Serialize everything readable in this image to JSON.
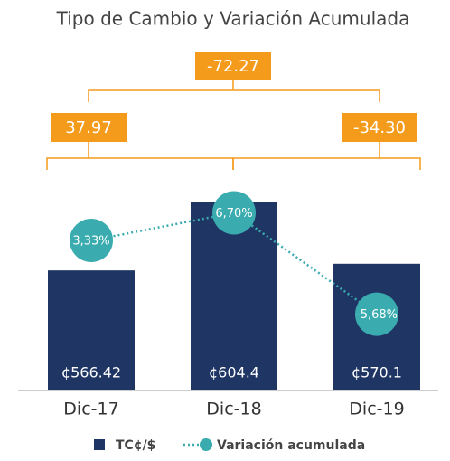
{
  "chart_data": {
    "type": "bar",
    "title": "Tipo de Cambio y Variación Acumulada",
    "categories": [
      "Dic-17",
      "Dic-18",
      "Dic-19"
    ],
    "series": [
      {
        "name": "TC¢/$",
        "type": "bar",
        "color": "#1f3564",
        "values": [
          566.42,
          604.4,
          570.1
        ],
        "value_labels": [
          "¢566.42",
          "¢604.4",
          "¢570.1"
        ]
      },
      {
        "name": "Variación acumulada",
        "type": "line",
        "axis": "y2",
        "color": "#3aacaf",
        "values": [
          3.33,
          6.7,
          -5.68
        ],
        "value_labels": [
          "3,33%",
          "6,70%",
          "-5,68%"
        ]
      }
    ],
    "ylim": [
      500,
      620
    ],
    "y2lim": [
      -15,
      11.5
    ],
    "annotations": [
      "-72.27",
      "37.97",
      "-34.30"
    ],
    "annotation_color": "#f59b1c"
  }
}
